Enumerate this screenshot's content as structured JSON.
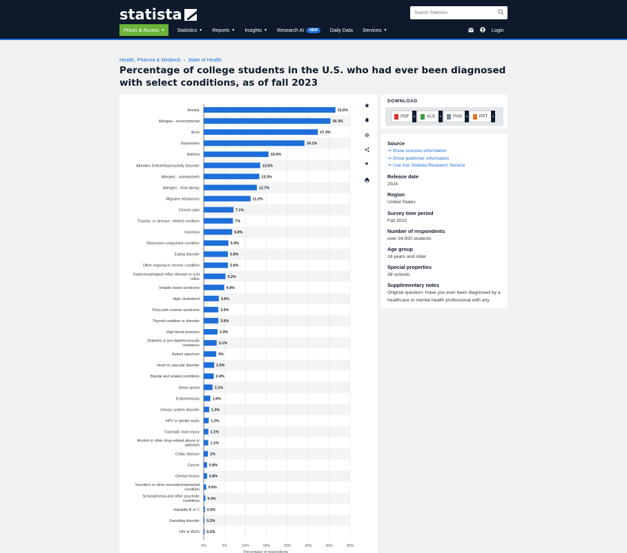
{
  "header": {
    "logo": "statista",
    "search_placeholder": "Search Statistics",
    "nav": [
      {
        "label": "Prices & Access",
        "caret": true
      },
      {
        "label": "Statistics",
        "caret": true
      },
      {
        "label": "Reports",
        "caret": true
      },
      {
        "label": "Insights",
        "caret": true
      },
      {
        "label": "Research AI",
        "badge": "NEW"
      },
      {
        "label": "Daily Data"
      },
      {
        "label": "Services",
        "caret": true
      }
    ],
    "login": "Login"
  },
  "breadcrumb": [
    "Health, Pharma & Medtech",
    "State of Health"
  ],
  "title": "Percentage of college students in the U.S. who had ever been diagnosed with select conditions, as of fall 2023",
  "download": {
    "title": "DOWNLOAD",
    "buttons": [
      "PDF",
      "XLS",
      "PNG",
      "PPT"
    ]
  },
  "info": {
    "source_label": "Source",
    "source_links": [
      "Show sources information",
      "Show publisher information",
      "Use Ask Statista Research Service"
    ],
    "release_label": "Release date",
    "release_value": "2024",
    "region_label": "Region",
    "region_value": "United States",
    "period_label": "Survey time period",
    "period_value": "Fall 2023",
    "respondents_label": "Number of respondents",
    "respondents_value": "over 24,000 students",
    "age_label": "Age group",
    "age_value": "18 years and older",
    "special_label": "Special properties",
    "special_value": "38 schools",
    "notes_label": "Supplementary notes",
    "notes_value": "Original question: Have you ever been diagnosed by a healthcare or mental health professional with any"
  },
  "colors": {
    "bar": "#1e6fd9",
    "header": "#0e1a2b",
    "accent_green": "#6bb33b"
  },
  "chart_data": {
    "type": "bar",
    "orientation": "horizontal",
    "xlabel": "Percentage of respondents",
    "xlim": [
      0,
      35
    ],
    "xticks": [
      "0%",
      "5%",
      "10%",
      "15%",
      "20%",
      "25%",
      "30%",
      "35%"
    ],
    "grid": true,
    "categories": [
      [
        "Anxiety"
      ],
      [
        "Allergies - environmental"
      ],
      [
        "Acne"
      ],
      [
        "Depression"
      ],
      [
        "Asthma"
      ],
      [
        "Attention Deficit/Hyperactivity Disorder"
      ],
      [
        "Allergies - animals/pets"
      ],
      [
        "Allergies - food allergy"
      ],
      [
        "Migraine headaches"
      ],
      [
        "Chronic pain"
      ],
      [
        "Trauma- or stressor- related condition"
      ],
      [
        "Insomnia"
      ],
      [
        "Obsessive-compulsive condition"
      ],
      [
        "Eating disorder"
      ],
      [
        "Other ongoing or chronic condition"
      ],
      [
        "Gastroesophageal reflux disease or acid",
        "reflux"
      ],
      [
        "Irritable bowel syndrome"
      ],
      [
        "High cholesterol"
      ],
      [
        "Polycystic ovarian syndrome"
      ],
      [
        "Thyroid condition or disorder"
      ],
      [
        "High blood pressure"
      ],
      [
        "Diabetes or pre-diabetes/insulin",
        "resistance"
      ],
      [
        "Autism spectrum"
      ],
      [
        "Heart or vascular disorder"
      ],
      [
        "Bipolar and related conditions"
      ],
      [
        "Sleep apnea"
      ],
      [
        "Endometriosis"
      ],
      [
        "Urinary system disorder"
      ],
      [
        "HPV or genital warts"
      ],
      [
        "Traumatic brain injury"
      ],
      [
        "Alcohol or other drug-related abuse or",
        "addiction"
      ],
      [
        "Celiac disease"
      ],
      [
        "Cancer"
      ],
      [
        "Genital herpes"
      ],
      [
        "Tourette's or other neurodevelopmental",
        "condition"
      ],
      [
        "Schizophrenia and other psychotic",
        "conditions"
      ],
      [
        "Hepatitis B or C"
      ],
      [
        "Gambling disorder"
      ],
      [
        "HIV or AIDS"
      ]
    ],
    "values": [
      31.5,
      30.3,
      27.3,
      24.1,
      15.5,
      13.5,
      13.3,
      12.7,
      11.2,
      7.1,
      7,
      6.8,
      5.9,
      5.8,
      5.8,
      5.2,
      4.9,
      3.6,
      3.5,
      3.5,
      3.3,
      3.1,
      3,
      2.5,
      2.4,
      2.1,
      1.6,
      1.3,
      1.2,
      1.1,
      1.1,
      1,
      0.8,
      0.8,
      0.6,
      0.4,
      0.3,
      0.2,
      0.2
    ],
    "value_labels": [
      "31.5%",
      "30.3%",
      "27.3%",
      "24.1%",
      "15.5%",
      "13.5%",
      "13.3%",
      "12.7%",
      "11.2%",
      "7.1%",
      "7%",
      "6.8%",
      "5.9%",
      "5.8%",
      "5.8%",
      "5.2%",
      "4.9%",
      "3.6%",
      "3.5%",
      "3.5%",
      "3.3%",
      "3.1%",
      "3%",
      "2.5%",
      "2.4%",
      "2.1%",
      "1.6%",
      "1.3%",
      "1.2%",
      "1.1%",
      "1.1%",
      "1%",
      "0.8%",
      "0.8%",
      "0.6%",
      "0.4%",
      "0.3%",
      "0.2%",
      "0.2%"
    ]
  }
}
